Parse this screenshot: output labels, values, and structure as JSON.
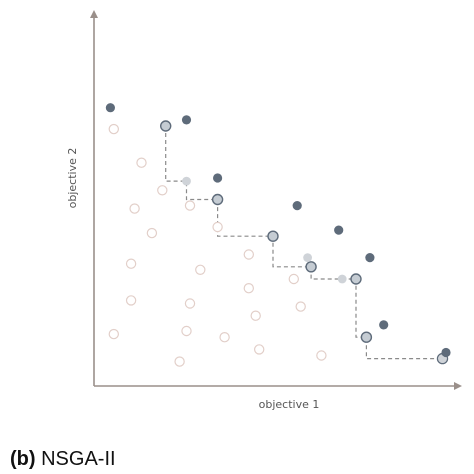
{
  "caption": {
    "tag": "(b)",
    "text": "NSGA-II"
  },
  "chart_data": {
    "type": "scatter",
    "title": "",
    "xlabel": "objective 1",
    "ylabel": "objective 2",
    "xlim": [
      0,
      10
    ],
    "ylim": [
      0,
      10
    ],
    "grid": false,
    "legend": "none",
    "tick_labels": "none",
    "colors": {
      "axis": "#9a8f8a",
      "dominated_stroke": "#e2cfc9",
      "front_fill": "#c5ccd3",
      "front_stroke": "#5e6b7a",
      "step_fill": "#cfd3d8",
      "dark_fill": "#5e6b7a",
      "staircase": "#8a8a8a"
    },
    "series": [
      {
        "role": "dominated",
        "marker": "open-circle",
        "points": [
          [
            0.4,
            8.2
          ],
          [
            1.2,
            7.1
          ],
          [
            1.8,
            6.2
          ],
          [
            1.0,
            5.6
          ],
          [
            1.5,
            4.8
          ],
          [
            0.9,
            3.8
          ],
          [
            0.9,
            2.6
          ],
          [
            0.4,
            1.5
          ],
          [
            2.6,
            5.7
          ],
          [
            2.9,
            3.6
          ],
          [
            2.6,
            2.5
          ],
          [
            2.5,
            1.6
          ],
          [
            2.3,
            0.6
          ],
          [
            3.4,
            5.0
          ],
          [
            4.3,
            4.1
          ],
          [
            4.3,
            3.0
          ],
          [
            4.5,
            2.1
          ],
          [
            3.6,
            1.4
          ],
          [
            4.6,
            1.0
          ],
          [
            5.8,
            2.4
          ],
          [
            5.6,
            3.3
          ],
          [
            6.4,
            0.8
          ]
        ]
      },
      {
        "role": "non-dominated-front",
        "marker": "ringed-circle",
        "points": [
          [
            1.9,
            8.3
          ],
          [
            3.4,
            5.9
          ],
          [
            5.0,
            4.7
          ],
          [
            6.1,
            3.7
          ],
          [
            7.4,
            3.3
          ],
          [
            7.7,
            1.4
          ],
          [
            9.9,
            0.7
          ]
        ]
      },
      {
        "role": "staircase-corner",
        "marker": "filled-circle",
        "points": [
          [
            2.5,
            6.5
          ],
          [
            6.0,
            4.0
          ],
          [
            7.0,
            3.3
          ],
          [
            9.9,
            0.7
          ]
        ]
      },
      {
        "role": "dominated-outer",
        "marker": "filled-circle",
        "points": [
          [
            0.3,
            8.9
          ],
          [
            2.5,
            8.5
          ],
          [
            3.4,
            6.6
          ],
          [
            5.7,
            5.7
          ],
          [
            6.9,
            4.9
          ],
          [
            7.8,
            4.0
          ],
          [
            8.2,
            1.8
          ],
          [
            10.0,
            0.9
          ]
        ]
      }
    ],
    "staircase": [
      [
        1.9,
        8.3
      ],
      [
        1.9,
        6.5
      ],
      [
        2.5,
        6.5
      ],
      [
        2.5,
        5.9
      ],
      [
        3.4,
        5.9
      ],
      [
        3.4,
        4.7
      ],
      [
        5.0,
        4.7
      ],
      [
        5.0,
        3.7
      ],
      [
        6.1,
        3.7
      ],
      [
        6.1,
        3.3
      ],
      [
        7.4,
        3.3
      ],
      [
        7.4,
        1.4
      ],
      [
        7.7,
        1.4
      ],
      [
        7.7,
        0.7
      ],
      [
        9.9,
        0.7
      ]
    ]
  }
}
